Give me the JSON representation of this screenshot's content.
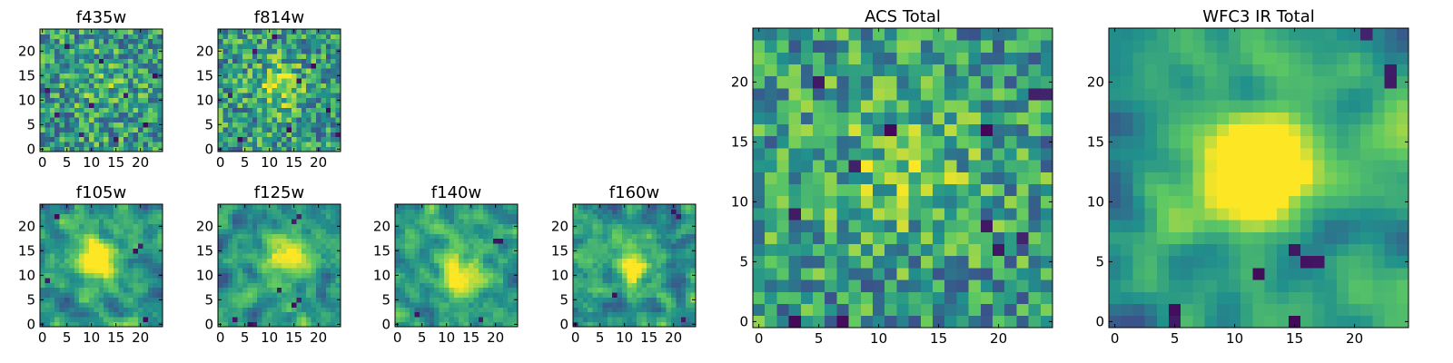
{
  "figure": {
    "description_colormap": "viridis",
    "colors": {
      "viridis": [
        "#440154",
        "#3b528b",
        "#21918c",
        "#5ec962",
        "#fde725"
      ],
      "frame": "#000000",
      "background": "#ffffff"
    }
  },
  "chart_data": [
    {
      "type": "heatmap",
      "title": "f435w",
      "grid_size": [
        25,
        25
      ],
      "xlim": [
        0,
        24
      ],
      "ylim": [
        0,
        24
      ],
      "xticks": [
        0,
        5,
        10,
        15,
        20
      ],
      "yticks": [
        0,
        5,
        10,
        15,
        20
      ],
      "colormap": "viridis",
      "seed": 435,
      "blob": {
        "cx": 12,
        "cy": 13,
        "sigma": 4,
        "amp": 0.1
      },
      "noise_smooth": 0,
      "dark_pixels": [
        [
          3,
          7
        ],
        [
          8,
          3
        ],
        [
          12,
          18
        ],
        [
          17,
          11
        ],
        [
          21,
          5
        ],
        [
          5,
          21
        ],
        [
          23,
          15
        ],
        [
          1,
          12
        ],
        [
          15,
          2
        ],
        [
          10,
          9
        ]
      ]
    },
    {
      "type": "heatmap",
      "title": "f814w",
      "grid_size": [
        25,
        25
      ],
      "xlim": [
        0,
        24
      ],
      "ylim": [
        0,
        24
      ],
      "xticks": [
        0,
        5,
        10,
        15,
        20
      ],
      "yticks": [
        0,
        5,
        10,
        15,
        20
      ],
      "colormap": "viridis",
      "seed": 814,
      "blob": {
        "cx": 12,
        "cy": 13,
        "sigma": 3,
        "amp": 0.35
      },
      "noise_smooth": 0,
      "dark_pixels": [
        [
          2,
          11
        ],
        [
          7,
          20
        ],
        [
          14,
          4
        ],
        [
          19,
          17
        ],
        [
          22,
          8
        ],
        [
          4,
          2
        ],
        [
          11,
          23
        ],
        [
          16,
          14
        ],
        [
          24,
          3
        ]
      ]
    },
    {
      "type": "heatmap",
      "title": "f105w",
      "grid_size": [
        25,
        25
      ],
      "xlim": [
        0,
        24
      ],
      "ylim": [
        0,
        24
      ],
      "xticks": [
        0,
        5,
        10,
        15,
        20
      ],
      "yticks": [
        0,
        5,
        10,
        15,
        20
      ],
      "colormap": "viridis",
      "seed": 105,
      "blob": {
        "cx": 11,
        "cy": 13,
        "sigma": 3.2,
        "amp": 0.55
      },
      "noise_smooth": 1,
      "dark_pixels": [
        [
          19,
          15
        ],
        [
          20,
          16
        ],
        [
          21,
          1
        ],
        [
          3,
          22
        ],
        [
          1,
          9
        ]
      ]
    },
    {
      "type": "heatmap",
      "title": "f125w",
      "grid_size": [
        25,
        25
      ],
      "xlim": [
        0,
        24
      ],
      "ylim": [
        0,
        24
      ],
      "xticks": [
        0,
        5,
        10,
        15,
        20
      ],
      "yticks": [
        0,
        5,
        10,
        15,
        20
      ],
      "colormap": "viridis",
      "seed": 125,
      "blob": {
        "cx": 13,
        "cy": 13,
        "sigma": 3.5,
        "amp": 0.45
      },
      "noise_smooth": 1,
      "dark_pixels": [
        [
          6,
          0
        ],
        [
          7,
          0
        ],
        [
          15,
          4
        ],
        [
          16,
          5
        ],
        [
          15,
          21
        ],
        [
          16,
          22
        ],
        [
          12,
          7
        ],
        [
          3,
          1
        ]
      ]
    },
    {
      "type": "heatmap",
      "title": "f140w",
      "grid_size": [
        25,
        25
      ],
      "xlim": [
        0,
        24
      ],
      "ylim": [
        0,
        24
      ],
      "xticks": [
        0,
        5,
        10,
        15,
        20
      ],
      "yticks": [
        0,
        5,
        10,
        15,
        20
      ],
      "colormap": "viridis",
      "seed": 140,
      "blob": {
        "cx": 13,
        "cy": 11,
        "sigma": 3.5,
        "amp": 0.5
      },
      "noise_smooth": 1,
      "dark_pixels": [
        [
          20,
          17
        ],
        [
          21,
          17
        ],
        [
          4,
          2
        ],
        [
          17,
          1
        ]
      ]
    },
    {
      "type": "heatmap",
      "title": "f160w",
      "grid_size": [
        25,
        25
      ],
      "xlim": [
        0,
        24
      ],
      "ylim": [
        0,
        24
      ],
      "xticks": [
        0,
        5,
        10,
        15,
        20
      ],
      "yticks": [
        0,
        5,
        10,
        15,
        20
      ],
      "colormap": "viridis",
      "seed": 160,
      "blob": {
        "cx": 12,
        "cy": 12,
        "sigma": 3.2,
        "amp": 0.5
      },
      "noise_smooth": 1,
      "dark_pixels": [
        [
          20,
          23
        ],
        [
          21,
          22
        ],
        [
          22,
          1
        ],
        [
          0,
          0
        ],
        [
          8,
          6
        ]
      ]
    },
    {
      "type": "heatmap",
      "title": "ACS Total",
      "grid_size": [
        25,
        25
      ],
      "xlim": [
        0,
        24
      ],
      "ylim": [
        0,
        24
      ],
      "xticks": [
        0,
        5,
        10,
        15,
        20
      ],
      "yticks": [
        0,
        5,
        10,
        15,
        20
      ],
      "colormap": "viridis",
      "seed": 999,
      "blob": {
        "cx": 12,
        "cy": 13,
        "sigma": 4,
        "amp": 0.2
      },
      "noise_smooth": 0,
      "dark_pixels": [
        [
          5,
          20
        ],
        [
          8,
          13
        ],
        [
          11,
          16
        ],
        [
          19,
          16
        ],
        [
          23,
          19
        ],
        [
          24,
          19
        ],
        [
          3,
          9
        ],
        [
          22,
          7
        ],
        [
          19,
          8
        ],
        [
          3,
          0
        ],
        [
          7,
          0
        ],
        [
          20,
          6
        ]
      ]
    },
    {
      "type": "heatmap",
      "title": "WFC3 IR Total",
      "grid_size": [
        25,
        25
      ],
      "xlim": [
        0,
        24
      ],
      "ylim": [
        0,
        24
      ],
      "xticks": [
        0,
        5,
        10,
        15,
        20
      ],
      "yticks": [
        0,
        5,
        10,
        15,
        20
      ],
      "colormap": "viridis",
      "seed": 2013,
      "blob": {
        "cx": 12,
        "cy": 13,
        "sigma": 3.3,
        "amp": 0.75
      },
      "noise_smooth": 2,
      "dark_pixels": [
        [
          21,
          24
        ],
        [
          23,
          20
        ],
        [
          23,
          21
        ],
        [
          15,
          6
        ],
        [
          16,
          5
        ],
        [
          17,
          5
        ],
        [
          12,
          4
        ],
        [
          5,
          0
        ],
        [
          5,
          1
        ],
        [
          15,
          0
        ]
      ]
    }
  ]
}
